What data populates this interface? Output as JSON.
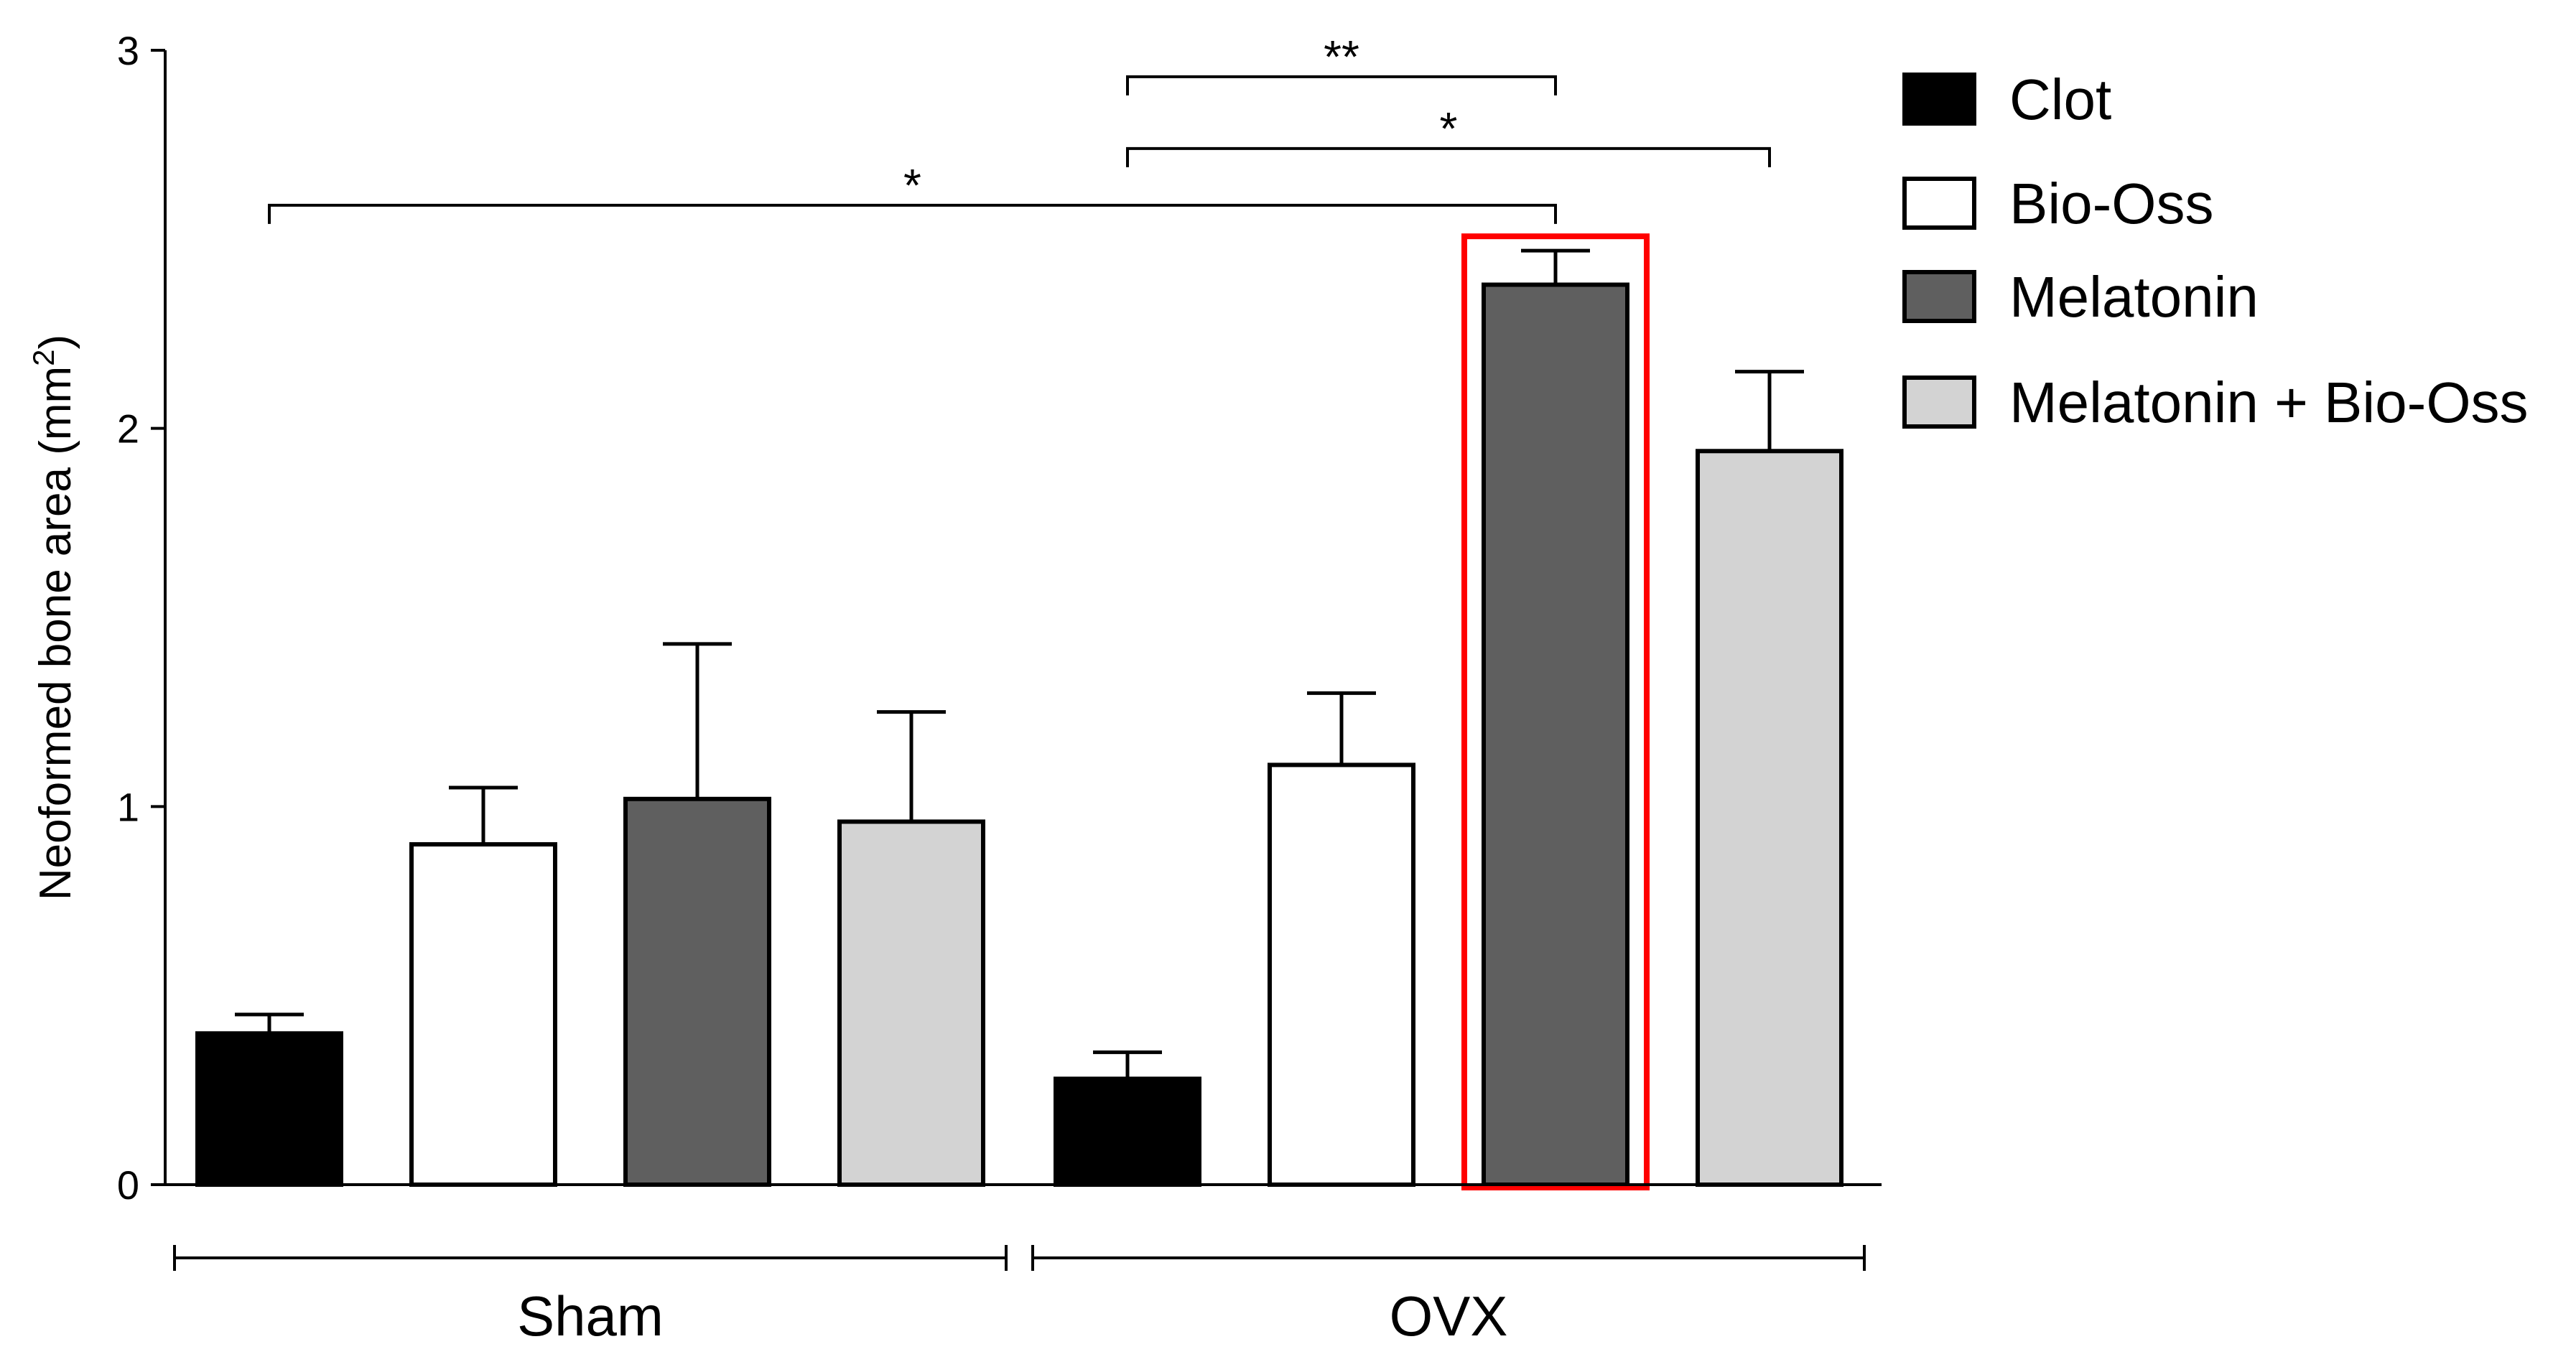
{
  "chart_data": {
    "type": "bar",
    "title": "",
    "xlabel": "",
    "ylabel": "Neoformed bone area (mm",
    "ylabel_superscript": "2",
    "ylabel_suffix": ")",
    "ylim": [
      0,
      3
    ],
    "yticks": [
      0,
      1,
      2,
      3
    ],
    "groups": [
      "Sham",
      "OVX"
    ],
    "series": [
      {
        "name": "Clot",
        "color": "#000000",
        "values": [
          0.4,
          0.28
        ],
        "errors": [
          0.05,
          0.07
        ]
      },
      {
        "name": "Bio-Oss",
        "color": "#ffffff",
        "values": [
          0.9,
          1.11
        ],
        "errors": [
          0.15,
          0.19
        ]
      },
      {
        "name": "Melatonin",
        "color": "#5f5f5f",
        "values": [
          1.02,
          2.38
        ],
        "errors": [
          0.41,
          0.09
        ]
      },
      {
        "name": "Melatonin + Bio-Oss",
        "color": "#d3d3d3",
        "values": [
          0.96,
          1.94
        ],
        "errors": [
          0.29,
          0.21
        ]
      }
    ],
    "legend_position": "right",
    "highlight": {
      "group": "OVX",
      "series": "Melatonin",
      "color": "#ff0000"
    },
    "significance": [
      {
        "label": "**",
        "from": {
          "group": "OVX",
          "series": "Clot"
        },
        "to": {
          "group": "OVX",
          "series": "Melatonin"
        },
        "level": 2.93
      },
      {
        "label": "*",
        "from": {
          "group": "OVX",
          "series": "Clot"
        },
        "to": {
          "group": "OVX",
          "series": "Melatonin + Bio-Oss"
        },
        "level": 2.74
      },
      {
        "label": "*",
        "from": {
          "group": "Sham",
          "series": "Clot"
        },
        "to": {
          "group": "OVX",
          "series": "Melatonin"
        },
        "level": 2.59
      }
    ]
  }
}
